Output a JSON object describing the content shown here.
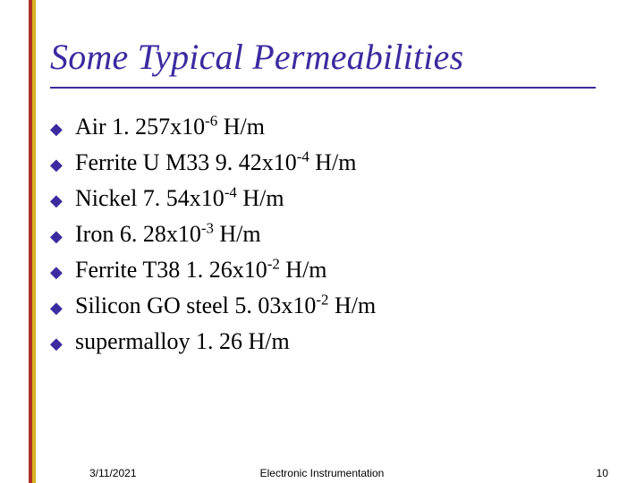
{
  "accent": {
    "color_a": "#b03028",
    "color_b": "#d8b020"
  },
  "title": {
    "text": "Some Typical Permeabilities",
    "color": "#3b2aa0",
    "fontsize": 40,
    "underline_color": "#3b2aa0"
  },
  "bullet_color": "#3b2aa0",
  "bullets": [
    {
      "pre": "Air   1. 257x10",
      "exp": "-6",
      "post": " H/m"
    },
    {
      "pre": "Ferrite U M33   9. 42x10",
      "exp": "-4",
      "post": " H/m"
    },
    {
      "pre": "Nickel   7. 54x10",
      "exp": "-4",
      "post": " H/m"
    },
    {
      "pre": "Iron   6. 28x10",
      "exp": "-3",
      "post": " H/m"
    },
    {
      "pre": "Ferrite T38    1. 26x10",
      "exp": "-2",
      "post": " H/m"
    },
    {
      "pre": "Silicon GO steel   5. 03x10",
      "exp": "-2",
      "post": " H/m"
    },
    {
      "pre": "supermalloy 1. 26 H/m",
      "exp": "",
      "post": ""
    }
  ],
  "footer": {
    "date": "3/11/2021",
    "center": "Electronic Instrumentation",
    "page": "10"
  }
}
